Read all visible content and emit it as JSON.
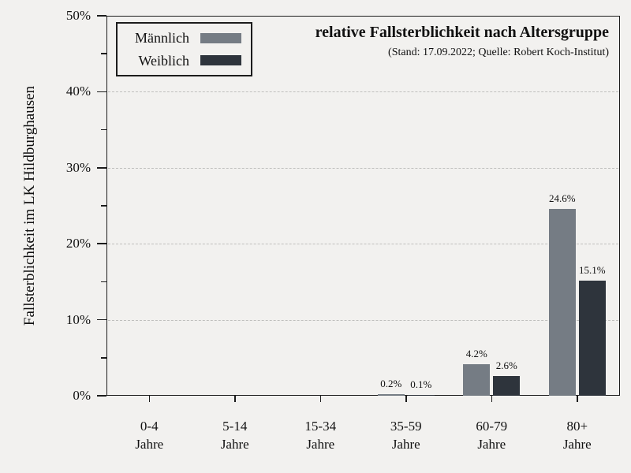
{
  "chart_data": {
    "type": "bar",
    "title": "relative Fallsterblichkeit nach Altersgruppe",
    "subtitle": "(Stand: 17.09.2022; Quelle: Robert Koch-Institut)",
    "ylabel": "Fallsterblichkeit im LK Hildburghausen",
    "xlabel": "",
    "ylim": [
      0,
      50
    ],
    "yticks": [
      {
        "value": 0,
        "label": "0%"
      },
      {
        "value": 10,
        "label": "10%"
      },
      {
        "value": 20,
        "label": "20%"
      },
      {
        "value": 30,
        "label": "30%"
      },
      {
        "value": 40,
        "label": "40%"
      },
      {
        "value": 50,
        "label": "50%"
      }
    ],
    "yticks_minor": [
      5,
      15,
      25,
      35,
      45
    ],
    "gridlines_at": [
      10,
      20,
      30,
      40
    ],
    "grid_style": "dashed",
    "legend_position": "top-left",
    "categories": [
      "0-4",
      "5-14",
      "15-34",
      "35-59",
      "60-79",
      "80+"
    ],
    "category_line2": "Jahre",
    "series": [
      {
        "name": "Männlich",
        "color": "#757c84",
        "values": [
          0,
          0,
          0,
          0.2,
          4.2,
          24.6
        ],
        "value_labels": [
          "",
          "",
          "",
          "0.2%",
          "4.2%",
          "24.6%"
        ]
      },
      {
        "name": "Weiblich",
        "color": "#2e343c",
        "values": [
          0,
          0,
          0,
          0.1,
          2.6,
          15.1
        ],
        "value_labels": [
          "",
          "",
          "",
          "0.1%",
          "2.6%",
          "15.1%"
        ]
      }
    ],
    "background": "#f2f1ef",
    "axis_color": "#1c1c1c"
  }
}
